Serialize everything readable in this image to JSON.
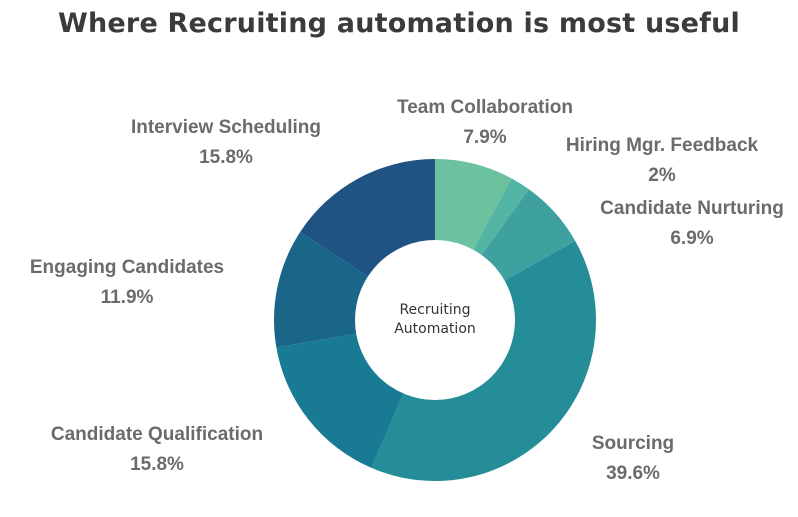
{
  "title": "Where Recruiting automation is most useful",
  "center_label": [
    "Recruiting",
    "Automation"
  ],
  "chart_data": {
    "type": "pie",
    "subtype": "donut",
    "title": "Where Recruiting automation is most useful",
    "center_label": "Recruiting Automation",
    "slices": [
      {
        "label": "Team Collaboration",
        "value": 7.9,
        "value_label": "7.9%",
        "color": "#6cc19f"
      },
      {
        "label": "Hiring Mgr. Feedback",
        "value": 2,
        "value_label": "2%",
        "color": "#52b4a2"
      },
      {
        "label": "Candidate Nurturing",
        "value": 6.9,
        "value_label": "6.9%",
        "color": "#3ea09f"
      },
      {
        "label": "Sourcing",
        "value": 39.6,
        "value_label": "39.6%",
        "color": "#248d97"
      },
      {
        "label": "Candidate Qualification",
        "value": 15.8,
        "value_label": "15.8%",
        "color": "#197a93"
      },
      {
        "label": "Engaging Candidates",
        "value": 11.9,
        "value_label": "11.9%",
        "color": "#1a6688"
      },
      {
        "label": "Interview Scheduling",
        "value": 15.8,
        "value_label": "15.8%",
        "color": "#1f5383"
      }
    ]
  }
}
